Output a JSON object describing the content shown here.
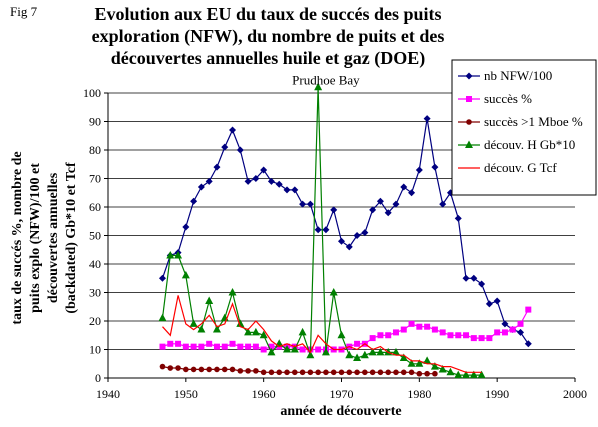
{
  "figure_label": "Fig 7",
  "chart_data": {
    "type": "line",
    "title_lines": [
      "Evolution aux EU du taux de succés des puits",
      "exploration (NFW), du nombre de puits et des",
      "découvertes annuelles huile et gaz (DOE)"
    ],
    "xlabel": "année de découverte",
    "ylabel_lines": [
      "taux de succés %, nombre de",
      "puits explo (NFW)/100 et",
      "découvertes annuelles",
      "(backdated) Gb*10 et Tcf"
    ],
    "xlim": [
      1940,
      2000
    ],
    "ylim": [
      0,
      100
    ],
    "x_ticks": [
      1940,
      1950,
      1960,
      1970,
      1980,
      1990,
      2000
    ],
    "y_ticks": [
      0,
      10,
      20,
      30,
      40,
      50,
      60,
      70,
      80,
      90,
      100
    ],
    "grid": "horizontal",
    "legend_position": "top-right",
    "annotations": [
      {
        "text": "Prudhoe Bay",
        "x": 1968,
        "y": 103
      }
    ],
    "series": [
      {
        "name": "nb NFW/100",
        "color": "#000080",
        "marker": "diamond",
        "x": [
          1947,
          1948,
          1949,
          1950,
          1951,
          1952,
          1953,
          1954,
          1955,
          1956,
          1957,
          1958,
          1959,
          1960,
          1961,
          1962,
          1963,
          1964,
          1965,
          1966,
          1967,
          1968,
          1969,
          1970,
          1971,
          1972,
          1973,
          1974,
          1975,
          1976,
          1977,
          1978,
          1979,
          1980,
          1981,
          1982,
          1983,
          1984,
          1985,
          1986,
          1987,
          1988,
          1989,
          1990,
          1991,
          1992,
          1993,
          1994
        ],
        "y": [
          35,
          43,
          44,
          53,
          62,
          67,
          69,
          74,
          81,
          87,
          80,
          69,
          70,
          73,
          69,
          68,
          66,
          66,
          61,
          61,
          52,
          52,
          59,
          48,
          46,
          50,
          51,
          59,
          62,
          58,
          61,
          67,
          65,
          73,
          91,
          74,
          61,
          65,
          56,
          35,
          35,
          33,
          26,
          27,
          19,
          17,
          16,
          12
        ]
      },
      {
        "name": "succès %",
        "color": "#ff00ff",
        "marker": "square",
        "x": [
          1947,
          1948,
          1949,
          1950,
          1951,
          1952,
          1953,
          1954,
          1955,
          1956,
          1957,
          1958,
          1959,
          1960,
          1961,
          1962,
          1963,
          1964,
          1965,
          1966,
          1967,
          1968,
          1969,
          1970,
          1971,
          1972,
          1973,
          1974,
          1975,
          1976,
          1977,
          1978,
          1979,
          1980,
          1981,
          1982,
          1983,
          1984,
          1985,
          1986,
          1987,
          1988,
          1989,
          1990,
          1991,
          1992,
          1993,
          1994
        ],
        "y": [
          11,
          12,
          12,
          11,
          11,
          11,
          12,
          11,
          11,
          12,
          11,
          11,
          11,
          10,
          11,
          11,
          11,
          11,
          10,
          10,
          10,
          10,
          10,
          10,
          11,
          12,
          12,
          14,
          15,
          15,
          16,
          17,
          19,
          18,
          18,
          17,
          16,
          15,
          15,
          15,
          14,
          14,
          14,
          16,
          16,
          17,
          19,
          24
        ]
      },
      {
        "name": "succès >1 Mboe %",
        "color": "#800000",
        "marker": "circle",
        "x": [
          1947,
          1948,
          1949,
          1950,
          1951,
          1952,
          1953,
          1954,
          1955,
          1956,
          1957,
          1958,
          1959,
          1960,
          1961,
          1962,
          1963,
          1964,
          1965,
          1966,
          1967,
          1968,
          1969,
          1970,
          1971,
          1972,
          1973,
          1974,
          1975,
          1976,
          1977,
          1978,
          1979,
          1980,
          1981,
          1982
        ],
        "y": [
          4,
          3.5,
          3.5,
          3,
          3,
          3,
          3,
          3,
          3,
          3,
          2.5,
          2.5,
          2.5,
          2,
          2,
          2,
          2,
          2,
          2,
          2,
          2,
          2,
          2,
          2,
          2,
          2,
          2,
          2,
          2,
          2,
          2,
          2,
          2,
          1.5,
          1.5,
          1.5
        ]
      },
      {
        "name": "découv. H Gb*10",
        "color": "#008000",
        "marker": "triangle",
        "x": [
          1947,
          1948,
          1949,
          1950,
          1951,
          1952,
          1953,
          1954,
          1955,
          1956,
          1957,
          1958,
          1959,
          1960,
          1961,
          1962,
          1963,
          1964,
          1965,
          1966,
          1967,
          1968,
          1969,
          1970,
          1971,
          1972,
          1973,
          1974,
          1975,
          1976,
          1977,
          1978,
          1979,
          1980,
          1981,
          1982,
          1983,
          1984,
          1985,
          1986,
          1987,
          1988
        ],
        "y": [
          21,
          43,
          43,
          36,
          19,
          17,
          27,
          17,
          21,
          30,
          19,
          16,
          16,
          15,
          9,
          12,
          10,
          10,
          16,
          8,
          102,
          9,
          30,
          15,
          8,
          7,
          8,
          9,
          9,
          9,
          9,
          7,
          5,
          5,
          6,
          4,
          3,
          2,
          1,
          1,
          1,
          1
        ]
      },
      {
        "name": "découv. G Tcf",
        "color": "#ff0000",
        "marker": "none",
        "x": [
          1947,
          1948,
          1949,
          1950,
          1951,
          1952,
          1953,
          1954,
          1955,
          1956,
          1957,
          1958,
          1959,
          1960,
          1961,
          1962,
          1963,
          1964,
          1965,
          1966,
          1967,
          1968,
          1969,
          1970,
          1971,
          1972,
          1973,
          1974,
          1975,
          1976,
          1977,
          1978,
          1979,
          1980,
          1981,
          1982,
          1983,
          1984,
          1985,
          1986,
          1987,
          1988
        ],
        "y": [
          18,
          15,
          29,
          19,
          17,
          19,
          22,
          18,
          19,
          26,
          18,
          17,
          20,
          17,
          13,
          11,
          12,
          11,
          12,
          9,
          15,
          12,
          10,
          10,
          11,
          10,
          12,
          10,
          11,
          9,
          8,
          8,
          6,
          6,
          5,
          5,
          4,
          4,
          3,
          2,
          2,
          2
        ]
      }
    ]
  }
}
